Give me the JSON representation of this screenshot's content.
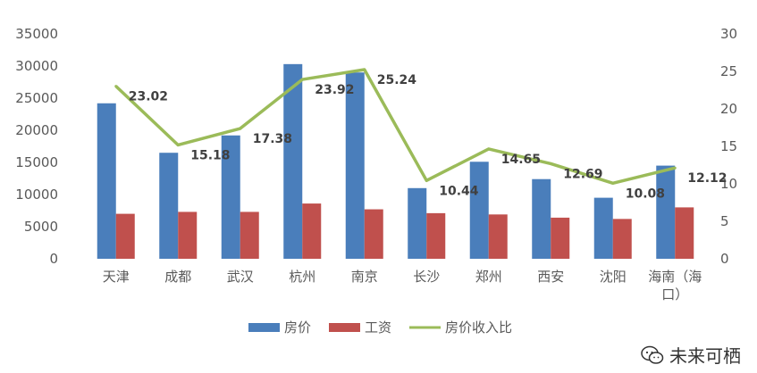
{
  "chart_data": {
    "type": "bar",
    "categories": [
      "天津",
      "成都",
      "武汉",
      "杭州",
      "南京",
      "长沙",
      "郑州",
      "西安",
      "沈阳",
      "海南（海口）"
    ],
    "series": [
      {
        "name": "房价",
        "type": "bar",
        "axis": "left",
        "color": "#4a7ebb",
        "values": [
          24200,
          16500,
          19200,
          30300,
          29000,
          11000,
          15100,
          12400,
          9500,
          14500
        ]
      },
      {
        "name": "工资",
        "type": "bar",
        "axis": "left",
        "color": "#c0504d",
        "values": [
          7000,
          7300,
          7300,
          8600,
          7700,
          7100,
          6900,
          6400,
          6200,
          8000
        ]
      },
      {
        "name": "房价收入比",
        "type": "line",
        "axis": "right",
        "color": "#9bbb59",
        "values": [
          23.02,
          15.18,
          17.38,
          23.92,
          25.24,
          10.44,
          14.65,
          12.69,
          10.08,
          12.12
        ],
        "labels": [
          "23.02",
          "15.18",
          "17.38",
          "23.92",
          "25.24",
          "10.44",
          "14.65",
          "12.69",
          "10.08",
          "12.12"
        ]
      }
    ],
    "y_left": {
      "min": 0,
      "max": 35000,
      "ticks": [
        "0",
        "5000",
        "10000",
        "15000",
        "20000",
        "25000",
        "30000",
        "35000"
      ]
    },
    "y_right": {
      "min": 0,
      "max": 30,
      "ticks": [
        "0",
        "5",
        "10",
        "15",
        "20",
        "25",
        "30"
      ]
    },
    "grid": false,
    "legend_position": "bottom"
  },
  "watermark": {
    "text": "未来可栖",
    "icon": "wechat-icon"
  }
}
